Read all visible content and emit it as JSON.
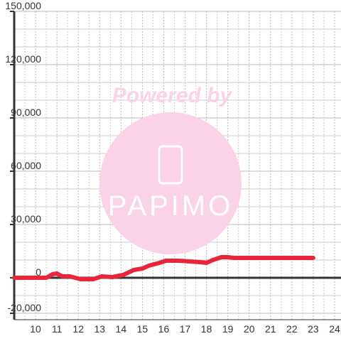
{
  "chart_data": {
    "type": "line",
    "annotations": [
      "Powered by",
      "PAPIMO"
    ],
    "x": [
      9,
      10.5,
      10.8,
      11,
      11.25,
      11.6,
      12.1,
      12.7,
      13.1,
      13.6,
      14.1,
      14.6,
      15,
      15.3,
      15.8,
      16.1,
      16.7,
      17.2,
      17.7,
      18,
      18.3,
      18.7,
      19,
      19.3,
      23
    ],
    "series": [
      {
        "name": null,
        "color": "#e8263a",
        "values": [
          0,
          0,
          2000,
          2400,
          800,
          800,
          -800,
          -800,
          800,
          400,
          1600,
          4400,
          5200,
          6800,
          8400,
          9600,
          9600,
          9200,
          8800,
          8400,
          10000,
          11600,
          11600,
          11200,
          11200
        ]
      }
    ],
    "xlim": [
      9,
      24.3
    ],
    "xticks": [
      10,
      11,
      12,
      13,
      14,
      15,
      16,
      17,
      18,
      19,
      20,
      21,
      22,
      23,
      24
    ],
    "ylim": [
      -20000,
      150000
    ],
    "yticks": [
      {
        "value": -20000,
        "label": "-20,000"
      },
      {
        "value": 0,
        "label": "0"
      },
      {
        "value": 30000,
        "label": "30,000"
      },
      {
        "value": 60000,
        "label": "60,000"
      },
      {
        "value": 90000,
        "label": "90,000"
      },
      {
        "value": 120000,
        "label": "120,000"
      },
      {
        "value": 150000,
        "label": "150,000"
      }
    ],
    "grid": true
  }
}
